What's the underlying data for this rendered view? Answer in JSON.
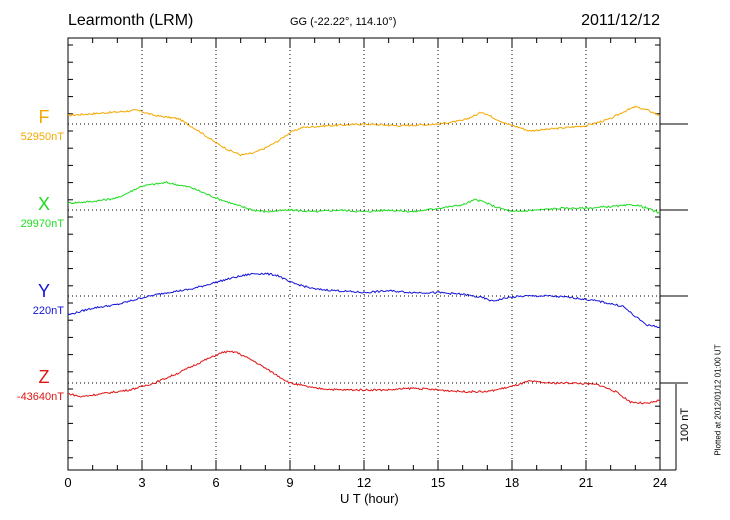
{
  "header": {
    "station": "Learmonth (LRM)",
    "coords": "GG (-22.22°, 114.10°)",
    "date": "2011/12/12"
  },
  "footer": {
    "plotted": "Plotted at 2012/01/12 01:00 UT"
  },
  "chart_data": {
    "type": "line",
    "title": "Learmonth (LRM)",
    "xlabel": "U T (hour)",
    "ylabel": "",
    "xlim": [
      0,
      24
    ],
    "xticks": [
      0,
      3,
      6,
      9,
      12,
      15,
      18,
      21,
      24
    ],
    "grid": true,
    "scale_bar": {
      "label": "100 nT",
      "value_nT": 100
    },
    "series": [
      {
        "name": "F",
        "baseline_label": "52950nT",
        "baseline_nT": 52950,
        "color": "#f5a800",
        "x": [
          0,
          1,
          2,
          2.8,
          3.5,
          4.5,
          5.3,
          6,
          6.5,
          7,
          7.5,
          8,
          8.5,
          9,
          9.5,
          10.5,
          12,
          13.5,
          15,
          16,
          16.5,
          16.8,
          17.2,
          17.8,
          18.3,
          18.7,
          19.5,
          21,
          22,
          22.5,
          23,
          23.5,
          24
        ],
        "values": [
          10,
          12,
          14,
          16,
          10,
          6,
          -8,
          -22,
          -30,
          -36,
          -34,
          -28,
          -20,
          -10,
          -4,
          -2,
          0,
          -2,
          0,
          4,
          10,
          14,
          8,
          0,
          -4,
          -8,
          -6,
          -2,
          6,
          14,
          20,
          16,
          10
        ]
      },
      {
        "name": "X",
        "baseline_label": "29970nT",
        "baseline_nT": 29970,
        "color": "#1fdc1f",
        "x": [
          0,
          1,
          2,
          3,
          4,
          5,
          6,
          6.8,
          7.5,
          8,
          9,
          10,
          11,
          12,
          13,
          14,
          15,
          16,
          16.5,
          16.8,
          17.3,
          18,
          19,
          20,
          21,
          22,
          23,
          23.5,
          24
        ],
        "values": [
          8,
          10,
          14,
          28,
          32,
          26,
          14,
          6,
          0,
          -2,
          0,
          -2,
          0,
          -2,
          0,
          -2,
          2,
          6,
          12,
          10,
          4,
          -2,
          0,
          2,
          2,
          4,
          6,
          2,
          -4
        ]
      },
      {
        "name": "Y",
        "baseline_label": "220nT",
        "baseline_nT": 220,
        "color": "#1414d8",
        "x": [
          0,
          1,
          2,
          3,
          4,
          5,
          6,
          6.8,
          7.5,
          8,
          8.5,
          9,
          10,
          11,
          12,
          13,
          14,
          15,
          16,
          16.8,
          17.2,
          17.8,
          18.5,
          19.5,
          20.5,
          21.5,
          22.5,
          23,
          23.5,
          24
        ],
        "values": [
          -22,
          -14,
          -10,
          -2,
          4,
          8,
          16,
          22,
          26,
          26,
          24,
          16,
          8,
          6,
          4,
          6,
          4,
          4,
          2,
          -2,
          -6,
          -2,
          0,
          0,
          -2,
          -6,
          -12,
          -24,
          -34,
          -36
        ]
      },
      {
        "name": "Z",
        "baseline_label": "-43640nT",
        "baseline_nT": -43640,
        "color": "#e01414",
        "x": [
          0,
          0.5,
          1.5,
          2.5,
          3.5,
          4.5,
          5.5,
          6.3,
          6.8,
          7.5,
          8.3,
          9,
          10,
          11,
          12,
          13,
          14,
          15,
          16,
          17,
          18,
          18.7,
          19.5,
          20.5,
          21.5,
          22.2,
          22.8,
          23.5,
          24
        ],
        "values": [
          -12,
          -16,
          -12,
          -8,
          0,
          12,
          26,
          36,
          36,
          26,
          12,
          0,
          -6,
          -8,
          -8,
          -8,
          -6,
          -8,
          -10,
          -10,
          -4,
          2,
          0,
          0,
          -2,
          -10,
          -22,
          -24,
          -20
        ]
      }
    ]
  }
}
